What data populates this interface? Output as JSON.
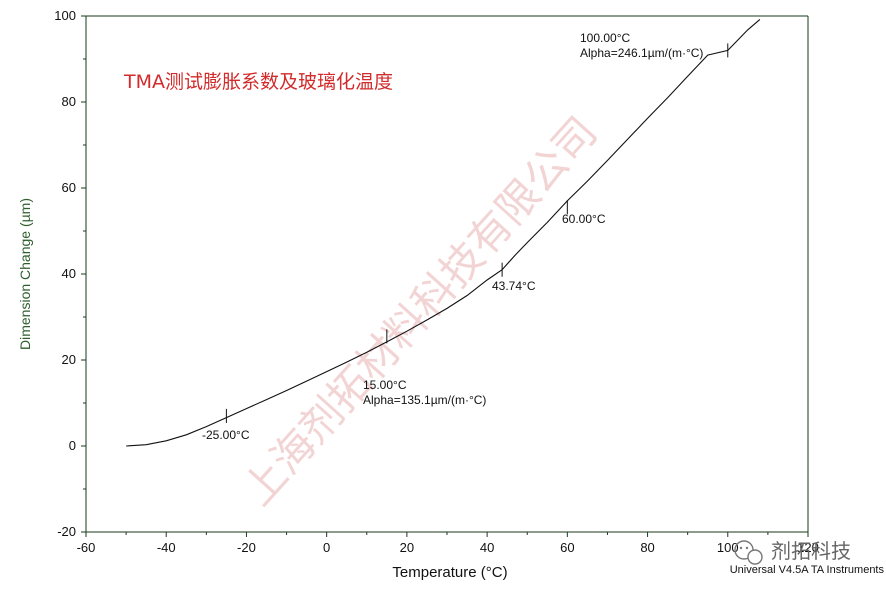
{
  "chart_data": {
    "type": "line",
    "title": "TMA测试膨胀系数及玻璃化温度",
    "xlabel": "Temperature (°C)",
    "ylabel": "Dimension Change (µm)",
    "xlim": [
      -60,
      120
    ],
    "ylim": [
      -20,
      100
    ],
    "x_ticks": [
      -60,
      -40,
      -20,
      0,
      20,
      40,
      60,
      80,
      100,
      120
    ],
    "y_ticks": [
      -20,
      0,
      20,
      40,
      60,
      80,
      100
    ],
    "x_tick_labels": [
      "-60",
      "-40",
      "-20",
      "0",
      "20",
      "40",
      "60",
      "80",
      "100",
      "120"
    ],
    "y_tick_labels": [
      "-20",
      "0",
      "20",
      "40",
      "60",
      "80",
      "100"
    ],
    "series": [
      {
        "x": [
          -50,
          -45,
          -40,
          -35,
          -30,
          -25,
          -20,
          -15,
          -10,
          -5,
          0,
          5,
          10,
          15,
          20,
          25,
          30,
          35,
          40,
          43.74,
          47,
          50,
          55,
          60,
          65,
          70,
          75,
          80,
          85,
          90,
          95,
          100,
          105,
          108
        ],
        "y": [
          0,
          0.3,
          1.2,
          2.6,
          4.5,
          6.6,
          8.7,
          10.8,
          12.9,
          15.1,
          17.3,
          19.5,
          21.8,
          24.2,
          26.7,
          29.3,
          32.0,
          35.0,
          38.6,
          41.0,
          44.4,
          47.3,
          52.0,
          57.0,
          61.6,
          66.4,
          71.3,
          76.2,
          81.0,
          86.0,
          90.9,
          92.0,
          96.8,
          99.2
        ]
      }
    ],
    "markers": [
      {
        "x": -25,
        "y": 7,
        "label": "-25.00°C"
      },
      {
        "x": 15,
        "y": 25.5,
        "label": "15.00°C"
      },
      {
        "x": 43.74,
        "y": 41,
        "label": "43.74°C"
      },
      {
        "x": 60,
        "y": 55.5,
        "label": "60.00°C"
      },
      {
        "x": 100,
        "y": 92,
        "label": "100.00°C"
      }
    ],
    "annotations": [
      {
        "text": "15.00°C"
      },
      {
        "text": "Alpha=135.1µm/(m·°C)"
      },
      {
        "text": "100.00°C"
      },
      {
        "text": "Alpha=246.1µm/(m·°C)"
      }
    ],
    "grid": false
  },
  "watermark": "上海剂拓材料科技有限公司",
  "footer": "Universal V4.5A TA Instruments",
  "brand": {
    "icon": "wechat-icon",
    "text": "剂拓科技"
  },
  "colors": {
    "title": "#d22b2b",
    "axis": "#1a3a1a",
    "ylabel": "#2e5e2e",
    "line": "#111111",
    "watermark": "#e9b2b2"
  }
}
